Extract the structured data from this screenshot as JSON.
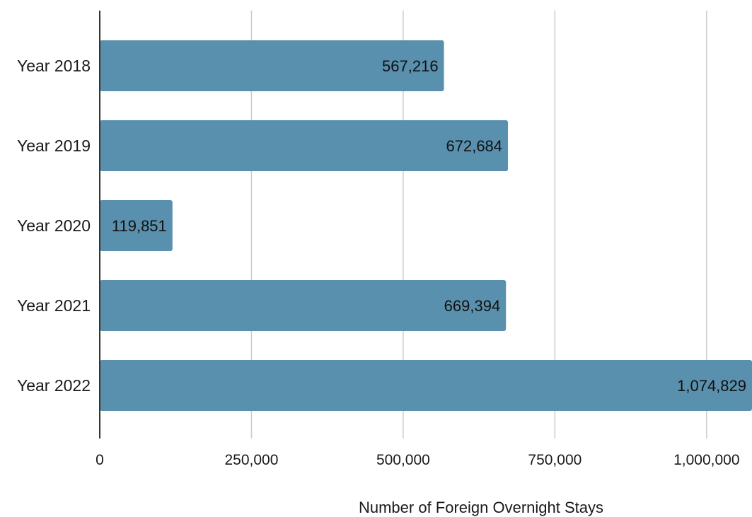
{
  "chart_data": {
    "type": "bar",
    "orientation": "horizontal",
    "categories": [
      "Year 2018",
      "Year 2019",
      "Year 2020",
      "Year 2021",
      "Year 2022"
    ],
    "values": [
      567216,
      672684,
      119851,
      669394,
      1074829
    ],
    "data_labels": [
      "567,216",
      "672,684",
      "119,851",
      "669,394",
      "1,074,829"
    ],
    "xlabel": "Number of Foreign Overnight Stays",
    "ylabel": "",
    "title": "",
    "x_ticks": [
      0,
      250000,
      500000,
      750000,
      1000000
    ],
    "x_tick_labels": [
      "0",
      "250,000",
      "500,000",
      "750,000",
      "1,000,000"
    ],
    "xlim": [
      0,
      1074829
    ],
    "grid": true,
    "bar_color": "#5890ad",
    "grid_color": "#cccccc",
    "axis_color": "#333333"
  }
}
